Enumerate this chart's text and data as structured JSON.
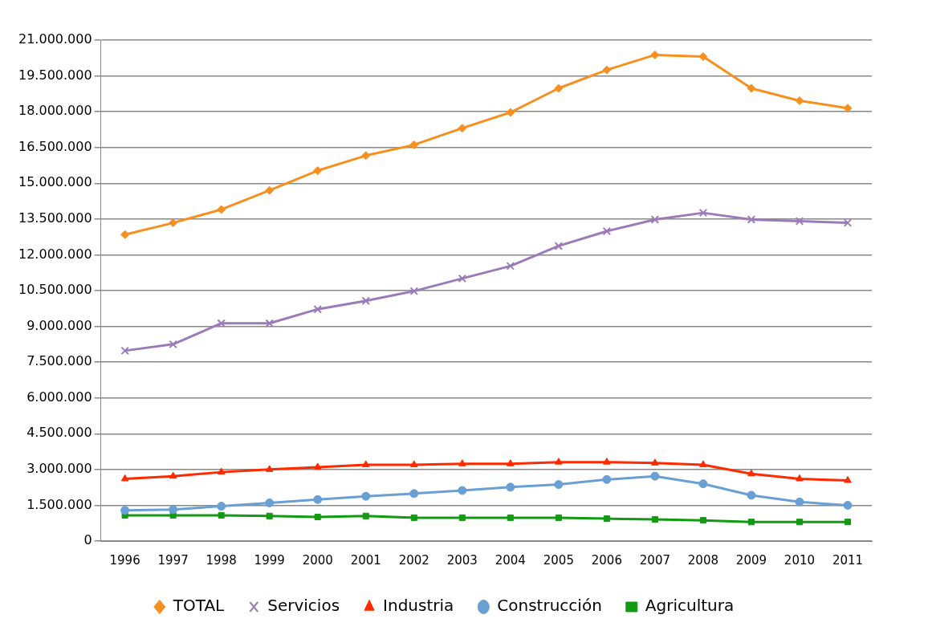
{
  "chart_data": {
    "type": "line",
    "categories": [
      "1996",
      "1997",
      "1998",
      "1999",
      "2000",
      "2001",
      "2002",
      "2003",
      "2004",
      "2005",
      "2006",
      "2007",
      "2008",
      "2009",
      "2010",
      "2011"
    ],
    "series": [
      {
        "name": "TOTAL",
        "color": "#f7901e",
        "marker": "diamond",
        "values": [
          12850000,
          13340000,
          13900000,
          14700000,
          15530000,
          16160000,
          16610000,
          17310000,
          17970000,
          18980000,
          19750000,
          20380000,
          20310000,
          18980000,
          18460000,
          18150000
        ]
      },
      {
        "name": "Servicios",
        "color": "#9b7bb8",
        "marker": "cross",
        "values": [
          7980000,
          8250000,
          9130000,
          9130000,
          9720000,
          10070000,
          10480000,
          11010000,
          11530000,
          12370000,
          12990000,
          13480000,
          13760000,
          13480000,
          13410000,
          13340000
        ]
      },
      {
        "name": "Industria",
        "color": "#ff2a00",
        "marker": "triangle",
        "values": [
          2610000,
          2720000,
          2890000,
          3000000,
          3100000,
          3200000,
          3200000,
          3240000,
          3240000,
          3310000,
          3310000,
          3270000,
          3200000,
          2820000,
          2610000,
          2540000
        ]
      },
      {
        "name": "Construcción",
        "color": "#6a9fd4",
        "marker": "circle",
        "values": [
          1290000,
          1320000,
          1460000,
          1600000,
          1740000,
          1880000,
          1990000,
          2120000,
          2260000,
          2370000,
          2580000,
          2720000,
          2400000,
          1920000,
          1640000,
          1500000
        ]
      },
      {
        "name": "Agricultura",
        "color": "#129a12",
        "marker": "square",
        "values": [
          1080000,
          1080000,
          1080000,
          1050000,
          1010000,
          1050000,
          980000,
          980000,
          980000,
          980000,
          940000,
          910000,
          870000,
          800000,
          800000,
          800000
        ]
      }
    ],
    "ylim": [
      0,
      21000000
    ],
    "yticks": [
      0,
      {
        "value": 1500000,
        "label": "1.500.000"
      },
      {
        "value": 3000000,
        "label": "3.000.000"
      },
      {
        "value": 4500000,
        "label": "4.500.000"
      },
      {
        "value": 6000000,
        "label": "6.000.000"
      },
      {
        "value": 7500000,
        "label": "7.500.000"
      },
      {
        "value": 9000000,
        "label": "9.000.000"
      },
      {
        "value": 10500000,
        "label": "10.500.000"
      },
      {
        "value": 12000000,
        "label": "12.000.000"
      },
      {
        "value": 13500000,
        "label": "13.500.000"
      },
      {
        "value": 15000000,
        "label": "15.000.000"
      },
      {
        "value": 16500000,
        "label": "16.500.000"
      },
      {
        "value": 18000000,
        "label": "18.000.000"
      },
      {
        "value": 19500000,
        "label": "19.500.000"
      },
      {
        "value": 21000000,
        "label": "21.000.000"
      }
    ],
    "grid": "y",
    "legend": "bottom",
    "line_style": "solid"
  }
}
